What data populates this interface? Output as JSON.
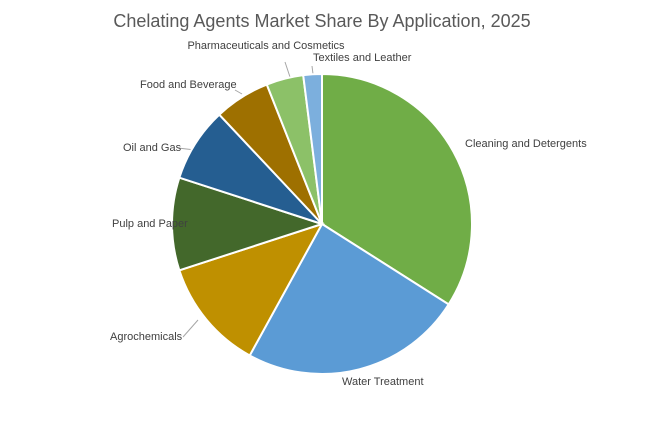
{
  "chart_data": {
    "type": "pie",
    "title": "Chelating Agents Market Share By Application, 2025",
    "categories": [
      "Cleaning and Detergents",
      "Water Treatment",
      "Agrochemicals",
      "Pulp and Paper",
      "Oil and Gas",
      "Food and Beverage",
      "Pharmaceuticals and Cosmetics",
      "Textiles and Leather"
    ],
    "values": [
      34,
      24,
      12,
      10,
      8,
      6,
      4,
      2
    ],
    "colors": [
      "#70ad47",
      "#5b9bd5",
      "#bf9000",
      "#43682b",
      "#255e91",
      "#9e7000",
      "#8cc168",
      "#7cafdd"
    ]
  }
}
